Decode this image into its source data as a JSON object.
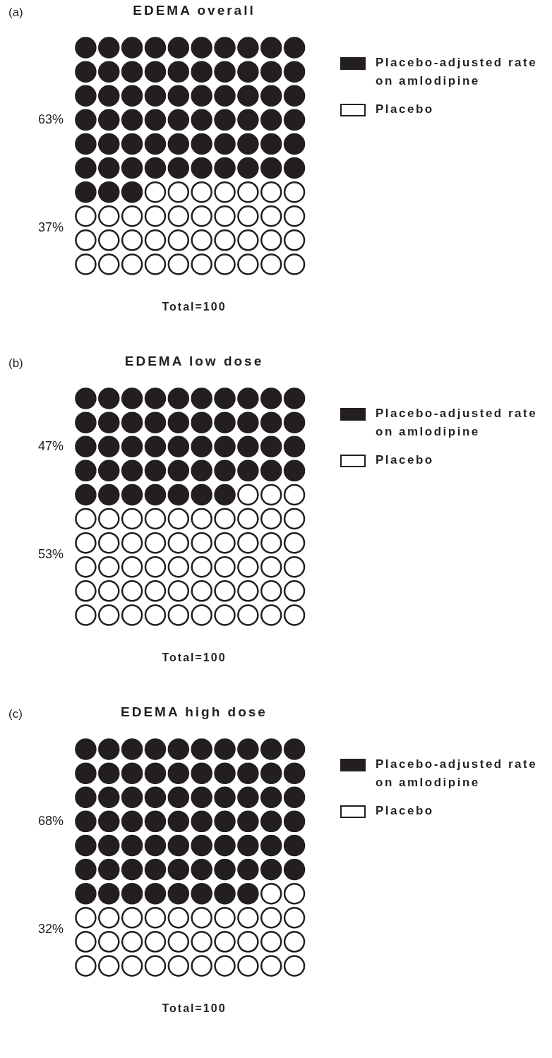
{
  "chart_data": [
    {
      "type": "other",
      "title": "EDEMA overall",
      "categories": [
        "Placebo-adjusted rate on amlodipine",
        "Placebo"
      ],
      "values": [
        63,
        37
      ],
      "value_labels": [
        "63%",
        "37%"
      ],
      "colors": [
        "#231f20",
        "#ffffff"
      ],
      "annotations": [
        "(a)",
        "Total=100"
      ]
    },
    {
      "type": "other",
      "title": "EDEMA low dose",
      "categories": [
        "Placebo-adjusted rate on amlodipine",
        "Placebo"
      ],
      "values": [
        47,
        53
      ],
      "value_labels": [
        "47%",
        "53%"
      ],
      "colors": [
        "#231f20",
        "#ffffff"
      ],
      "annotations": [
        "(b)",
        "Total=100"
      ]
    },
    {
      "type": "other",
      "title": "EDEMA high dose",
      "categories": [
        "Placebo-adjusted rate on amlodipine",
        "Placebo"
      ],
      "values": [
        68,
        32
      ],
      "value_labels": [
        "68%",
        "32%"
      ],
      "colors": [
        "#231f20",
        "#ffffff"
      ],
      "annotations": [
        "(c)",
        "Total=100"
      ]
    }
  ]
}
